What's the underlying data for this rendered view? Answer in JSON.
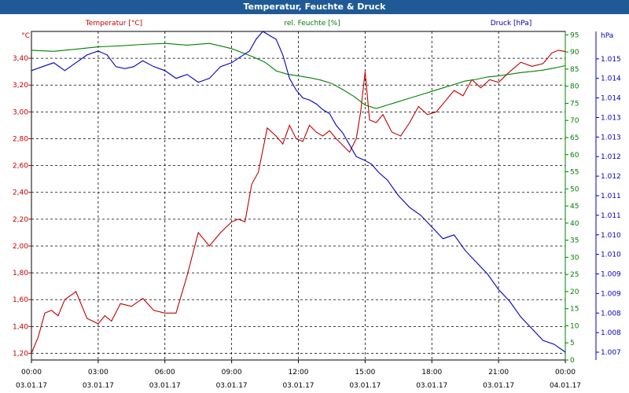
{
  "window": {
    "title": "Temperatur, Feuchte & Druck"
  },
  "colors": {
    "temperature": "#c00000",
    "humidity": "#008000",
    "pressure": "#0000c0",
    "grid": "#000000",
    "axis": "#000000",
    "titlebar": "#1f5a96"
  },
  "chart_data": {
    "type": "line",
    "title": "Temperatur, Feuchte & Druck",
    "x_axis": {
      "time_labels": [
        "00:00",
        "03:00",
        "06:00",
        "09:00",
        "12:00",
        "15:00",
        "18:00",
        "21:00",
        "00:00"
      ],
      "date_labels": [
        "03.01.17",
        "03.01.17",
        "03.01.17",
        "03.01.17",
        "03.01.17",
        "03.01.17",
        "03.01.17",
        "03.01.17",
        "04.01.17"
      ],
      "range_hours": [
        0,
        24
      ]
    },
    "axes": {
      "temperature": {
        "unit_label": "°C",
        "legend": "Temperatur [°C]",
        "ylim": [
          1.15,
          3.6
        ],
        "ticks": [
          "1,20",
          "1,40",
          "1,60",
          "1,80",
          "2,00",
          "2,20",
          "2,40",
          "2,60",
          "2,80",
          "3,00",
          "3,20",
          "3,40"
        ],
        "tick_values": [
          1.2,
          1.4,
          1.6,
          1.8,
          2.0,
          2.2,
          2.4,
          2.6,
          2.8,
          3.0,
          3.2,
          3.4
        ]
      },
      "humidity": {
        "unit_label": "%",
        "legend": "rel. Feuchte [%]",
        "ylim": [
          0,
          96
        ],
        "ticks": [
          "0",
          "5",
          "10",
          "15",
          "20",
          "25",
          "30",
          "35",
          "40",
          "45",
          "50",
          "55",
          "60",
          "65",
          "70",
          "75",
          "80",
          "85",
          "90",
          "95"
        ],
        "tick_values": [
          0,
          5,
          10,
          15,
          20,
          25,
          30,
          35,
          40,
          45,
          50,
          55,
          60,
          65,
          70,
          75,
          80,
          85,
          90,
          95
        ]
      },
      "pressure": {
        "unit_label": "hPa",
        "legend": "Druck [hPa]",
        "ylim": [
          1006.8,
          1015.2
        ],
        "ticks": [
          "1.007",
          "1.008",
          "1.008",
          "1.009",
          "1.009",
          "1.010",
          "1.010",
          "1.011",
          "1.011",
          "1.012",
          "1.012",
          "1.013",
          "1.013",
          "1.014",
          "1.014",
          "1.015"
        ],
        "tick_values": [
          1007.0,
          1007.5,
          1008.0,
          1008.5,
          1009.0,
          1009.5,
          1010.0,
          1010.5,
          1011.0,
          1011.5,
          1012.0,
          1012.5,
          1013.0,
          1013.5,
          1014.0,
          1014.5
        ]
      }
    },
    "series": [
      {
        "name": "Temperatur [°C]",
        "axis": "temperature",
        "x": [
          0,
          0.3,
          0.6,
          0.9,
          1.2,
          1.5,
          2.0,
          2.5,
          3.0,
          3.3,
          3.6,
          4.0,
          4.5,
          5.0,
          5.5,
          6.0,
          6.5,
          7.0,
          7.5,
          8.0,
          8.5,
          9.0,
          9.3,
          9.6,
          9.9,
          10.2,
          10.6,
          11.0,
          11.3,
          11.6,
          11.9,
          12.2,
          12.5,
          12.8,
          13.1,
          13.4,
          13.7,
          14.0,
          14.3,
          14.6,
          14.8,
          15.0,
          15.2,
          15.5,
          15.8,
          16.2,
          16.6,
          17.0,
          17.4,
          17.8,
          18.2,
          18.6,
          19.0,
          19.4,
          19.8,
          20.2,
          20.6,
          21.0,
          21.5,
          22.0,
          22.5,
          23.0,
          23.4,
          23.7,
          24.0
        ],
        "values": [
          1.2,
          1.32,
          1.5,
          1.52,
          1.48,
          1.6,
          1.66,
          1.46,
          1.42,
          1.48,
          1.44,
          1.57,
          1.55,
          1.61,
          1.52,
          1.5,
          1.5,
          1.78,
          2.1,
          2.0,
          2.1,
          2.18,
          2.2,
          2.18,
          2.46,
          2.55,
          2.88,
          2.82,
          2.76,
          2.9,
          2.8,
          2.78,
          2.9,
          2.85,
          2.82,
          2.86,
          2.8,
          2.75,
          2.7,
          2.8,
          3.0,
          3.3,
          2.94,
          2.92,
          2.98,
          2.85,
          2.82,
          2.92,
          3.04,
          2.98,
          3.0,
          3.08,
          3.16,
          3.12,
          3.24,
          3.18,
          3.24,
          3.22,
          3.3,
          3.37,
          3.34,
          3.36,
          3.44,
          3.46,
          3.45
        ]
      },
      {
        "name": "rel. Feuchte [%]",
        "axis": "humidity",
        "x": [
          0,
          1,
          2,
          3,
          4,
          5,
          6,
          7,
          8,
          9,
          10,
          10.5,
          11,
          11.5,
          12,
          12.5,
          13,
          13.5,
          14,
          14.5,
          15,
          15.5,
          16,
          16.5,
          17,
          17.5,
          18,
          18.5,
          19,
          19.5,
          20,
          20.5,
          21,
          21.5,
          22,
          22.5,
          23,
          23.5,
          24
        ],
        "values": [
          90.5,
          90.2,
          90.8,
          91.5,
          91.8,
          92.2,
          92.5,
          92.0,
          92.5,
          91.0,
          88.5,
          87.0,
          84.5,
          83.5,
          83.0,
          82.5,
          81.8,
          80.8,
          79.0,
          77.0,
          74.5,
          73.5,
          74.5,
          75.5,
          76.5,
          77.5,
          78.5,
          79.5,
          80.5,
          81.5,
          82.0,
          82.7,
          83.0,
          83.5,
          84.0,
          84.3,
          84.7,
          85.3,
          86.0
        ]
      },
      {
        "name": "Druck [hPa]",
        "axis": "pressure",
        "x": [
          0,
          0.5,
          1.0,
          1.5,
          2.0,
          2.5,
          3.0,
          3.4,
          3.8,
          4.2,
          4.6,
          5.0,
          5.5,
          6.0,
          6.5,
          7.0,
          7.5,
          8.0,
          8.5,
          9.0,
          9.4,
          9.8,
          10.1,
          10.4,
          10.7,
          11.0,
          11.3,
          11.6,
          11.9,
          12.2,
          12.5,
          12.8,
          13.1,
          13.4,
          13.7,
          14.0,
          14.3,
          14.6,
          15.0,
          15.3,
          15.6,
          16.0,
          16.5,
          17.0,
          17.5,
          18.0,
          18.5,
          19.0,
          19.5,
          20.0,
          20.5,
          21.0,
          21.5,
          22.0,
          22.5,
          23.0,
          23.5,
          24.0
        ],
        "values": [
          1014.2,
          1014.3,
          1014.4,
          1014.2,
          1014.4,
          1014.6,
          1014.7,
          1014.6,
          1014.3,
          1014.25,
          1014.3,
          1014.45,
          1014.3,
          1014.2,
          1014.0,
          1014.1,
          1013.9,
          1014.0,
          1014.3,
          1014.4,
          1014.55,
          1014.7,
          1015.0,
          1015.2,
          1015.1,
          1015.0,
          1014.6,
          1014.0,
          1013.7,
          1013.5,
          1013.45,
          1013.35,
          1013.2,
          1013.1,
          1012.8,
          1012.6,
          1012.3,
          1012.0,
          1011.9,
          1011.8,
          1011.6,
          1011.4,
          1011.0,
          1010.7,
          1010.5,
          1010.2,
          1009.9,
          1010.0,
          1009.6,
          1009.3,
          1009.0,
          1008.6,
          1008.3,
          1007.9,
          1007.6,
          1007.3,
          1007.2,
          1007.0
        ]
      }
    ]
  }
}
